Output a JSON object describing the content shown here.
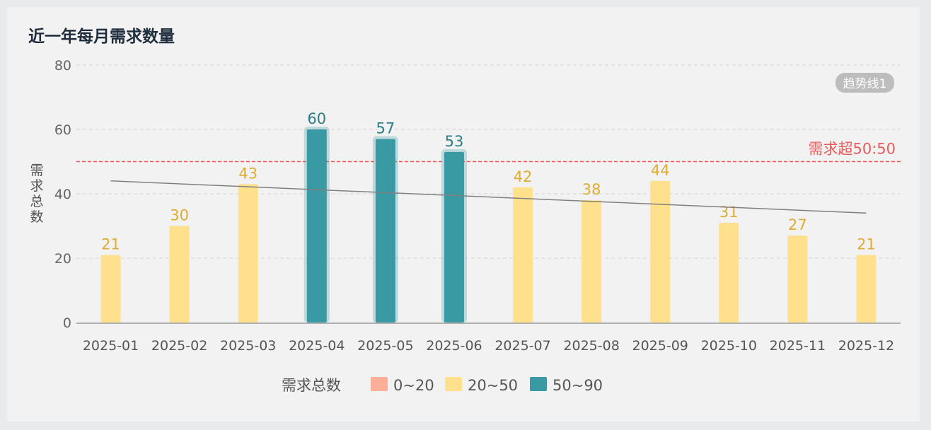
{
  "chart_data": {
    "type": "bar",
    "title": "近一年每月需求数量",
    "ylabel": "需求总数",
    "ylim": [
      0,
      80
    ],
    "yticks": [
      0,
      20,
      40,
      60,
      80
    ],
    "categories": [
      "2025-01",
      "2025-02",
      "2025-03",
      "2025-04",
      "2025-05",
      "2025-06",
      "2025-07",
      "2025-08",
      "2025-09",
      "2025-10",
      "2025-11",
      "2025-12"
    ],
    "series": [
      {
        "name": "需求总数",
        "values": [
          21,
          30,
          43,
          60,
          57,
          53,
          42,
          38,
          44,
          31,
          27,
          21
        ]
      }
    ],
    "visual_map": {
      "label": "需求总数",
      "pieces": [
        {
          "label": "0~20",
          "min": 0,
          "max": 20,
          "color": "#fcae98"
        },
        {
          "label": "20~50",
          "min": 20,
          "max": 50,
          "color": "#ffe08c"
        },
        {
          "label": "50~90",
          "min": 50,
          "max": 90,
          "color": "#3a9aa3"
        }
      ]
    },
    "label_colors": {
      "20~50": "#e0ac32",
      "50~90": "#2c7d86"
    },
    "mark_line": {
      "label": "需求超50:50",
      "value": 50,
      "color": "#e85b5b"
    },
    "trend_line": {
      "label": "趋势线1",
      "start": 44,
      "end": 34,
      "color": "#808080"
    },
    "grid": true,
    "legend_position": "bottom-center"
  }
}
